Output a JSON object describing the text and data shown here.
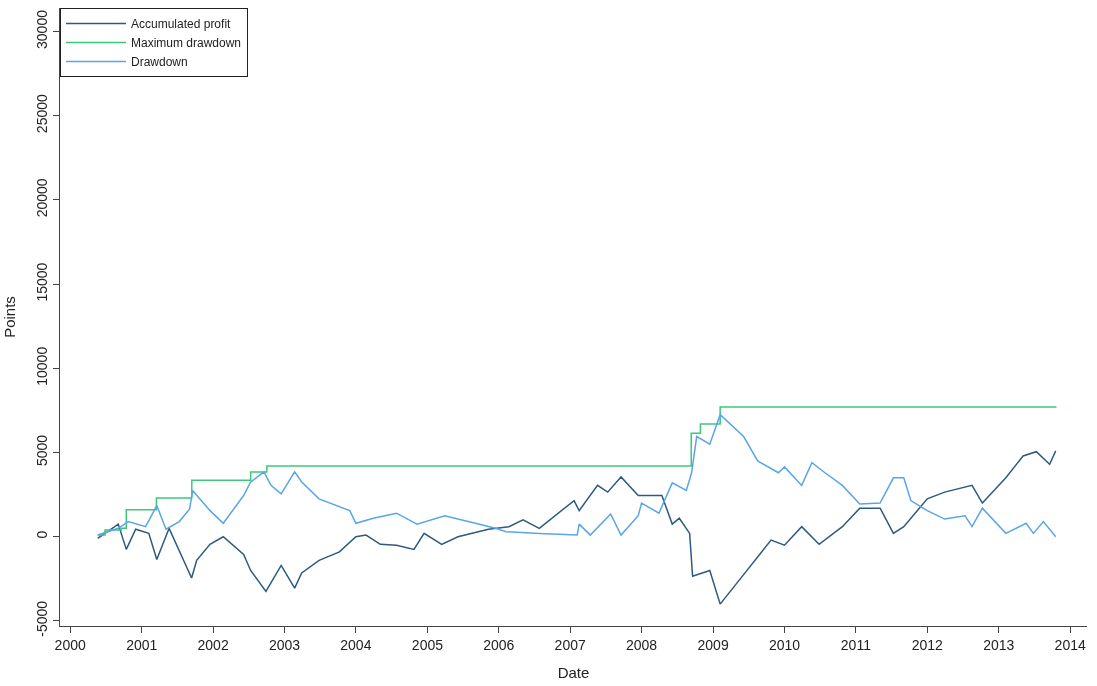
{
  "chart_data": {
    "type": "line",
    "xlabel": "Date",
    "ylabel": "Points",
    "xlim": [
      "1999-11-10",
      "2014-03-28"
    ],
    "ylim": [
      -5300,
      31400
    ],
    "xticks": [
      {
        "value": "2000-01-01",
        "label": "2000"
      },
      {
        "value": "2001-01-01",
        "label": "2001"
      },
      {
        "value": "2002-01-01",
        "label": "2002"
      },
      {
        "value": "2003-01-01",
        "label": "2003"
      },
      {
        "value": "2004-01-01",
        "label": "2004"
      },
      {
        "value": "2005-01-01",
        "label": "2005"
      },
      {
        "value": "2006-01-01",
        "label": "2006"
      },
      {
        "value": "2007-01-01",
        "label": "2007"
      },
      {
        "value": "2008-01-01",
        "label": "2008"
      },
      {
        "value": "2009-01-01",
        "label": "2009"
      },
      {
        "value": "2010-01-01",
        "label": "2010"
      },
      {
        "value": "2011-01-01",
        "label": "2011"
      },
      {
        "value": "2012-01-01",
        "label": "2012"
      },
      {
        "value": "2013-01-01",
        "label": "2013"
      },
      {
        "value": "2014-01-01",
        "label": "2014"
      }
    ],
    "yticks": [
      -5000,
      0,
      5000,
      10000,
      15000,
      20000,
      25000,
      30000
    ],
    "legend": "top left",
    "line_style": "solid",
    "series": [
      {
        "name": "Accumulated profit",
        "color": "#2e5a80",
        "x": [
          "2000-05-21",
          "2000-09-03",
          "2000-10-14",
          "2000-12-01",
          "2001-02-06",
          "2001-03-19",
          "2001-05-21",
          "2001-09-13",
          "2001-10-09",
          "2001-12-16",
          "2002-02-22",
          "2002-06-06",
          "2002-07-12",
          "2002-09-28",
          "2002-12-15",
          "2003-02-22",
          "2003-03-30",
          "2003-06-27",
          "2003-10-09",
          "2004-01-01",
          "2004-02-22",
          "2004-05-05",
          "2004-07-27",
          "2004-10-24",
          "2004-12-15",
          "2005-03-15",
          "2005-06-06",
          "2005-11-09",
          "2006-02-22",
          "2006-05-05",
          "2006-07-27",
          "2007-01-21",
          "2007-02-16",
          "2007-05-21",
          "2007-07-12",
          "2007-09-18",
          "2007-12-15",
          "2008-04-14",
          "2008-06-06",
          "2008-07-12",
          "2008-09-03",
          "2008-09-18",
          "2008-12-15",
          "2009-02-06",
          "2009-06-06",
          "2009-10-24",
          "2010-01-01",
          "2010-03-30",
          "2010-06-27",
          "2010-10-24",
          "2011-01-21",
          "2011-05-05",
          "2011-07-12",
          "2011-09-03",
          "2012-01-01",
          "2012-03-30",
          "2012-08-17",
          "2012-10-09",
          "2013-02-06",
          "2013-05-05",
          "2013-07-12",
          "2013-09-18",
          "2013-10-19"
        ],
        "values": [
          -100,
          750,
          -750,
          450,
          200,
          -1350,
          500,
          -2450,
          -1400,
          -450,
          0,
          -1050,
          -2000,
          -3250,
          -1700,
          -3050,
          -2150,
          -1400,
          -900,
          0,
          100,
          -450,
          -500,
          -750,
          200,
          -450,
          0,
          450,
          600,
          1000,
          500,
          2150,
          1550,
          3050,
          2650,
          3550,
          2450,
          2450,
          750,
          1100,
          200,
          -2350,
          -2000,
          -4000,
          -2250,
          -200,
          -500,
          600,
          -450,
          600,
          1700,
          1700,
          200,
          600,
          2250,
          2650,
          3050,
          2000,
          3500,
          4800,
          5050,
          4300,
          5100
        ]
      },
      {
        "name": "Maximum drawdown",
        "color": "#3cc878",
        "type": "step",
        "x": [
          "2000-05-21",
          "2000-06-27",
          "2000-09-18",
          "2000-10-14",
          "2001-03-17",
          "2001-09-14",
          "2002-07-12",
          "2002-10-03",
          "2008-09-11",
          "2008-10-28",
          "2009-02-06",
          "2013-10-23"
        ],
        "values": [
          100,
          400,
          500,
          1600,
          2300,
          3350,
          3850,
          4200,
          6150,
          6700,
          7700,
          7700
        ]
      },
      {
        "name": "Drawdown",
        "color": "#5aa5e6",
        "x": [
          "2000-05-21",
          "2000-09-03",
          "2000-10-24",
          "2001-01-21",
          "2001-03-19",
          "2001-05-05",
          "2001-07-12",
          "2001-09-03",
          "2001-09-18",
          "2001-12-16",
          "2002-02-22",
          "2002-06-06",
          "2002-07-12",
          "2002-09-18",
          "2002-10-24",
          "2002-12-15",
          "2003-02-22",
          "2003-03-30",
          "2003-06-27",
          "2003-12-01",
          "2004-01-01",
          "2004-03-30",
          "2004-07-27",
          "2004-11-09",
          "2005-03-30",
          "2005-09-03",
          "2005-12-15",
          "2006-02-06",
          "2006-07-27",
          "2007-02-06",
          "2007-02-16",
          "2007-04-14",
          "2007-07-27",
          "2007-09-18",
          "2007-12-15",
          "2008-01-01",
          "2008-03-30",
          "2008-06-06",
          "2008-08-17",
          "2008-09-13",
          "2008-10-09",
          "2008-12-15",
          "2009-02-06",
          "2009-06-06",
          "2009-08-17",
          "2009-12-01",
          "2010-01-01",
          "2010-03-30",
          "2010-05-21",
          "2010-07-27",
          "2010-10-24",
          "2011-01-21",
          "2011-05-05",
          "2011-07-12",
          "2011-09-03",
          "2011-10-09",
          "2012-01-01",
          "2012-03-30",
          "2012-07-12",
          "2012-08-17",
          "2012-10-09",
          "2013-02-06",
          "2013-05-21",
          "2013-06-27",
          "2013-08-17",
          "2013-10-19"
        ],
        "values": [
          100,
          500,
          900,
          600,
          1850,
          450,
          900,
          1650,
          2750,
          1550,
          800,
          2450,
          3250,
          3850,
          3050,
          2550,
          3850,
          3250,
          2250,
          1550,
          800,
          1100,
          1400,
          750,
          1250,
          800,
          500,
          300,
          200,
          100,
          750,
          100,
          1350,
          100,
          1250,
          2000,
          1400,
          3200,
          2750,
          3800,
          5950,
          5500,
          7250,
          5950,
          4500,
          3800,
          4150,
          3050,
          4400,
          3800,
          3050,
          1950,
          2000,
          3500,
          3500,
          2150,
          1550,
          1050,
          1250,
          600,
          1700,
          200,
          800,
          200,
          900,
          0
        ]
      }
    ]
  }
}
